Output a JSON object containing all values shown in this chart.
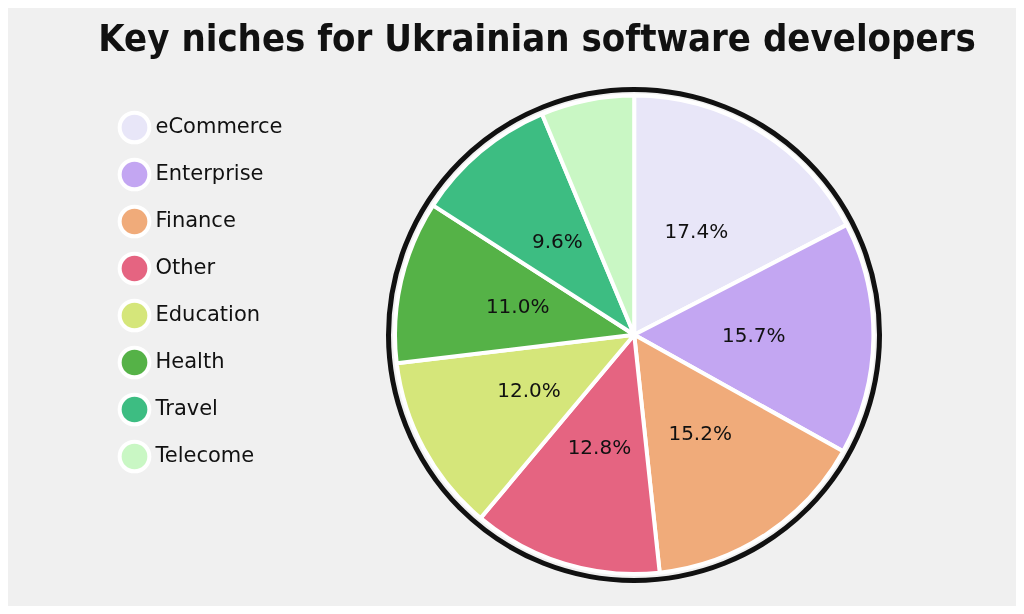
{
  "chart_data": {
    "type": "pie",
    "title": "Key niches for Ukrainian software developers",
    "categories": [
      "eCommerce",
      "Enterprise",
      "Finance",
      "Other",
      "Education",
      "Health",
      "Travel",
      "Telecome"
    ],
    "values": [
      17.4,
      15.7,
      15.2,
      12.8,
      12.0,
      11.0,
      9.6,
      6.3
    ],
    "colors": [
      "#e8e6f8",
      "#c3a6f2",
      "#f0ab7a",
      "#e56481",
      "#d5e67a",
      "#55b247",
      "#3dbd82",
      "#c9f7c4"
    ],
    "value_labels": [
      "17.4%",
      "15.7%",
      "15.2%",
      "12.8%",
      "12.0%",
      "11.0%",
      "9.6%",
      null
    ],
    "legend": "left"
  }
}
